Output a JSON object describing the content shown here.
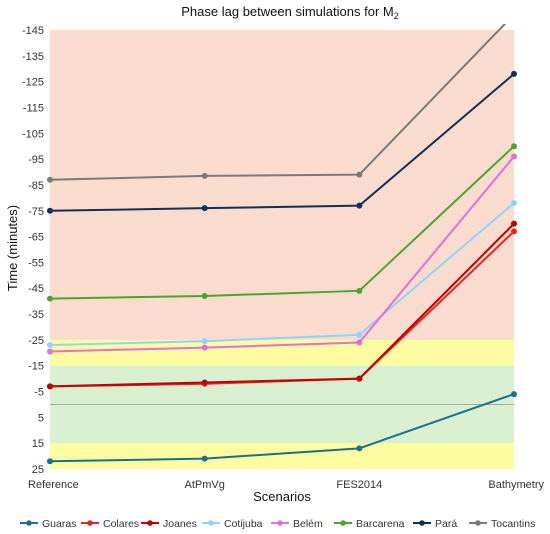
{
  "chart_data": {
    "type": "line",
    "title": "Phase lag between simulations for M",
    "title_subscript": "2",
    "xlabel": "Scenarios",
    "ylabel": "Time (minutes)",
    "categories": [
      "Reference",
      "AtPmVg",
      "FES2014",
      "Bathymetry"
    ],
    "y_axis": {
      "inverted": true,
      "min": -145,
      "max": 25,
      "ticks": [
        -145,
        -135,
        -125,
        -115,
        -105,
        -95,
        -85,
        -75,
        -65,
        -55,
        -45,
        -35,
        -25,
        -15,
        -5,
        5,
        15,
        25
      ],
      "tick_labels": [
        "-145",
        "-135",
        "-125",
        "-115",
        "-105",
        "-95",
        "-85",
        "-75",
        "-65",
        "-55",
        "-45",
        "-35",
        "-25",
        "-15",
        "-5",
        "5",
        "15",
        "25"
      ]
    },
    "background_bands": [
      {
        "from": -145,
        "to": -25,
        "color": "#fadccf"
      },
      {
        "from": -25,
        "to": -15,
        "color": "#fdfca0"
      },
      {
        "from": -15,
        "to": 15,
        "color": "#d8f0cf"
      },
      {
        "from": 15,
        "to": 25,
        "color": "#fdfca0"
      }
    ],
    "zero_line": true,
    "legend_position": "bottom",
    "series": [
      {
        "name": "Guaras",
        "color": "#1a6d94",
        "values": [
          22,
          21,
          17,
          -4
        ]
      },
      {
        "name": "Colares",
        "color": "#e8261f",
        "values": [
          -7,
          -8,
          -10,
          -67
        ]
      },
      {
        "name": "Joanes",
        "color": "#c00000",
        "values": [
          -7,
          -8.5,
          -10,
          -70
        ]
      },
      {
        "name": "Cotijuba",
        "color": "#8fd3ff",
        "values": [
          -23,
          -24.5,
          -27,
          -78
        ]
      },
      {
        "name": "Belém",
        "color": "#e06fd8",
        "values": [
          -20.5,
          -22,
          -24,
          -96
        ]
      },
      {
        "name": "Barcarena",
        "color": "#4aa52e",
        "values": [
          -41,
          -42,
          -44,
          -100
        ]
      },
      {
        "name": "Pará",
        "color": "#132f55",
        "values": [
          -75,
          -76,
          -77,
          -128
        ]
      },
      {
        "name": "Tocantins",
        "color": "#7a7a7a",
        "values": [
          -87,
          -88.5,
          -89,
          -151
        ]
      }
    ]
  }
}
